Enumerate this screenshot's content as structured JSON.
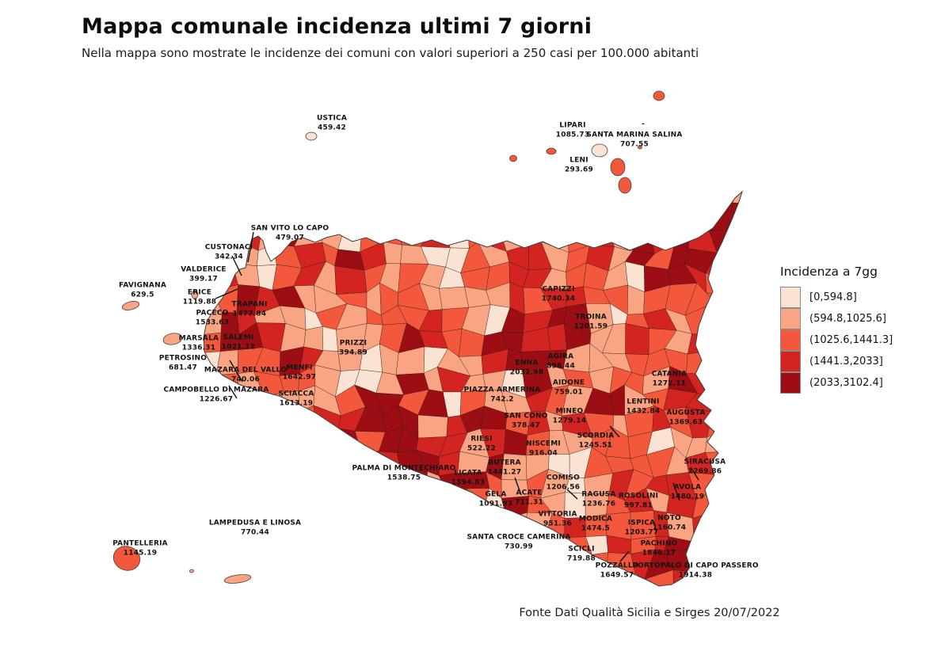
{
  "header": {
    "title": "Mappa comunale incidenza ultimi 7 giorni",
    "subtitle": "Nella mappa sono mostrate le incidenze dei comuni con valori superiori a 250 casi per 100.000 abitanti"
  },
  "legend": {
    "title": "Incidenza a 7gg",
    "items": [
      {
        "label": "[0,594.8]",
        "color": "#fbe3d3"
      },
      {
        "label": "(594.8,1025.6]",
        "color": "#f9a483"
      },
      {
        "label": "(1025.6,1441.3]",
        "color": "#f4583c"
      },
      {
        "label": "(1441.3,2033]",
        "color": "#d32421"
      },
      {
        "label": "(2033,3102.4]",
        "color": "#9c0e14"
      }
    ]
  },
  "footer": {
    "source": "Fonte Dati Qualità Sicilia e Sirges 20/07/2022"
  },
  "chart_data": {
    "type": "heatmap",
    "subtype": "choropleth-map",
    "region": "Sicilia",
    "title": "Mappa comunale incidenza ultimi 7 giorni",
    "legend_title": "Incidenza a 7gg",
    "legend_position": "right",
    "classes": [
      "[0,594.8]",
      "(594.8,1025.6]",
      "(1025.6,1441.3]",
      "(1441.3,2033]",
      "(2033,3102.4]"
    ],
    "class_colors": [
      "#fbe3d3",
      "#f9a483",
      "#f4583c",
      "#d32421",
      "#9c0e14"
    ],
    "unit": "casi per 100.000 abitanti",
    "municipalities": [
      {
        "name": "USTICA",
        "value": 459.42
      },
      {
        "name": "LIPARI",
        "value": 1085.73
      },
      {
        "name": "-",
        "value": null
      },
      {
        "name": "SANTA MARINA SALINA",
        "value": 707.55
      },
      {
        "name": "LENI",
        "value": 293.69
      },
      {
        "name": "SAN VITO LO CAPO",
        "value": 479.07
      },
      {
        "name": "CUSTONACI",
        "value": 342.34
      },
      {
        "name": "VALDERICE",
        "value": 399.17
      },
      {
        "name": "FAVIGNANA",
        "value": 629.5
      },
      {
        "name": "ERICE",
        "value": 1119.88
      },
      {
        "name": "TRAPANI",
        "value": 1477.84
      },
      {
        "name": "PACECO",
        "value": 1533.63
      },
      {
        "name": "MARSALA",
        "value": 1336.31
      },
      {
        "name": "SALEMI",
        "value": 1021.12
      },
      {
        "name": "PETROSINO",
        "value": 681.47
      },
      {
        "name": "MAZARA DEL VALLO",
        "value": 740.06
      },
      {
        "name": "CAMPOBELLO DI MAZARA",
        "value": 1226.67
      },
      {
        "name": "MENFI",
        "value": 1642.97
      },
      {
        "name": "SCIACCA",
        "value": 1613.19
      },
      {
        "name": "PRIZZI",
        "value": 394.89
      },
      {
        "name": "CAPIZZI",
        "value": 1740.34
      },
      {
        "name": "TROINA",
        "value": 1201.59
      },
      {
        "name": "AGIRA",
        "value": 898.44
      },
      {
        "name": "ENNA",
        "value": 2032.98
      },
      {
        "name": "AIDONE",
        "value": 759.01
      },
      {
        "name": "PIAZZA ARMERINA",
        "value": 742.2
      },
      {
        "name": "SAN CONO",
        "value": 378.47
      },
      {
        "name": "MINEO",
        "value": 1279.14
      },
      {
        "name": "LENTINI",
        "value": 1432.84
      },
      {
        "name": "CATANIA",
        "value": 1272.11
      },
      {
        "name": "AUGUSTA",
        "value": 1369.63
      },
      {
        "name": "SCORDIA",
        "value": 1245.51
      },
      {
        "name": "RIESI",
        "value": 522.22
      },
      {
        "name": "NISCEMI",
        "value": 916.04
      },
      {
        "name": "BUTERA",
        "value": 1441.27
      },
      {
        "name": "PALMA DI MONTECHIARO",
        "value": 1538.75
      },
      {
        "name": "LICATA",
        "value": 1394.83
      },
      {
        "name": "GELA",
        "value": 1091.93
      },
      {
        "name": "ACATE",
        "value": 711.31
      },
      {
        "name": "COMISO",
        "value": 1206.56
      },
      {
        "name": "SIRACUSA",
        "value": 1269.86
      },
      {
        "name": "AVOLA",
        "value": 1480.19
      },
      {
        "name": "RAGUSA",
        "value": 1236.76
      },
      {
        "name": "ROSOLINI",
        "value": 997.81
      },
      {
        "name": "VITTORIA",
        "value": 951.36
      },
      {
        "name": "MODICA",
        "value": 1474.5
      },
      {
        "name": "ISPICA",
        "value": 1203.77
      },
      {
        "name": "NOTO",
        "value": 1160.74
      },
      {
        "name": "SANTA CROCE CAMERINA",
        "value": 730.99
      },
      {
        "name": "SCICLI",
        "value": 719.88
      },
      {
        "name": "PACHINO",
        "value": 1846.17
      },
      {
        "name": "POZZALLO",
        "value": 1649.57
      },
      {
        "name": "PORTOPALO DI CAPO PASSERO",
        "value": 1914.38
      },
      {
        "name": "LAMPEDUSA E LINOSA",
        "value": 770.44
      },
      {
        "name": "PANTELLERIA",
        "value": 1145.19
      }
    ]
  },
  "map": {
    "palette": [
      "#fbe3d3",
      "#f9a483",
      "#f4583c",
      "#d32421",
      "#9c0e14"
    ]
  }
}
